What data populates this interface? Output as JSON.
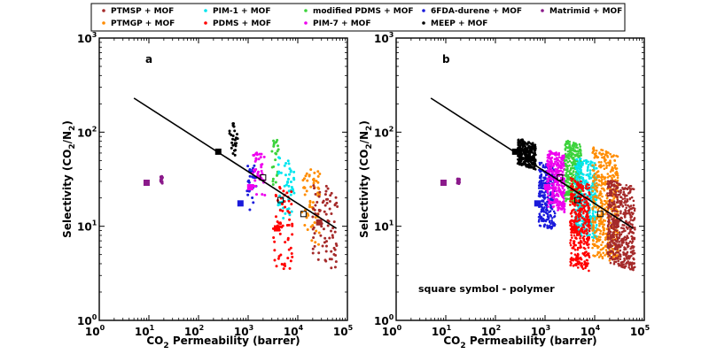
{
  "chart_data": {
    "type": "scatter",
    "scale": {
      "x": "log",
      "y": "log"
    },
    "xlim": [
      1,
      100000
    ],
    "ylim": [
      1,
      1000
    ],
    "x_ticks": [
      {
        "base": "10",
        "exp": "0"
      },
      {
        "base": "10",
        "exp": "1"
      },
      {
        "base": "10",
        "exp": "2"
      },
      {
        "base": "10",
        "exp": "3"
      },
      {
        "base": "10",
        "exp": "4"
      },
      {
        "base": "10",
        "exp": "5"
      }
    ],
    "y_ticks": [
      {
        "base": "10",
        "exp": "0"
      },
      {
        "base": "10",
        "exp": "1"
      },
      {
        "base": "10",
        "exp": "2"
      },
      {
        "base": "10",
        "exp": "3"
      }
    ],
    "xlabel": {
      "prefix": "CO",
      "sub": "2",
      "suffix": "  Permeability (barrer)"
    },
    "ylabel": {
      "prefix": "Selectivity (CO",
      "sub1": "2",
      "mid": "/N",
      "sub2": "2",
      "suffix": ")"
    },
    "legend": [
      {
        "label": "PTMSP + MOF",
        "color": "#a52a2a"
      },
      {
        "label": "PIM-1 + MOF",
        "color": "#00e5ee"
      },
      {
        "label": "modified PDMS + MOF",
        "color": "#3cd33c"
      },
      {
        "label": "6FDA-durene + MOF",
        "color": "#1a1adb"
      },
      {
        "label": "Matrimid + MOF",
        "color": "#8b1a8b"
      },
      {
        "label": "PTMGP + MOF",
        "color": "#ff8c00"
      },
      {
        "label": "PDMS + MOF",
        "color": "#ff0000"
      },
      {
        "label": "PIM-7 + MOF",
        "color": "#ee00ee"
      },
      {
        "label": "MEEP + MOF",
        "color": "#000000"
      }
    ],
    "legend_position": "top",
    "upper_bound_line": {
      "x": [
        5,
        60000
      ],
      "y": [
        230,
        9.5
      ]
    },
    "panels": [
      {
        "label": "a",
        "annotation": "",
        "polymers": [
          {
            "name": "Matrimid",
            "x": 9,
            "y": 29
          },
          {
            "name": "MEEP",
            "x": 250,
            "y": 62
          },
          {
            "name": "6FDA-durene",
            "x": 700,
            "y": 17.5
          },
          {
            "name": "PIM-7",
            "x": 1100,
            "y": 26
          },
          {
            "name": "modified PDMS",
            "x": 2000,
            "y": 33
          },
          {
            "name": "PDMS",
            "x": 3800,
            "y": 9.5
          },
          {
            "name": "PIM-1",
            "x": 4500,
            "y": 19
          },
          {
            "name": "PTMGP",
            "x": 13000,
            "y": 13.5
          },
          {
            "name": "PTMSP",
            "x": 27000,
            "y": 11
          }
        ],
        "clusters": [
          {
            "series": "Matrimid + MOF",
            "x": [
              17,
              19
            ],
            "y": [
              27,
              35
            ]
          },
          {
            "series": "MEEP + MOF",
            "x": [
              420,
              620
            ],
            "y": [
              55,
              140
            ]
          },
          {
            "series": "6FDA-durene + MOF",
            "x": [
              950,
              1450
            ],
            "y": [
              14,
              50
            ]
          },
          {
            "series": "PIM-7 + MOF",
            "x": [
              1200,
              2200
            ],
            "y": [
              20,
              70
            ]
          },
          {
            "series": "modified PDMS + MOF",
            "x": [
              3000,
              4200
            ],
            "y": [
              24,
              95
            ]
          },
          {
            "series": "PIM-1 + MOF",
            "x": [
              4000,
              8500
            ],
            "y": [
              11,
              62
            ]
          },
          {
            "series": "PDMS + MOF",
            "x": [
              3200,
              8000
            ],
            "y": [
              3.2,
              33
            ]
          },
          {
            "series": "PTMGP + MOF",
            "x": [
              12000,
              28000
            ],
            "y": [
              6,
              50
            ]
          },
          {
            "series": "PTMSP + MOF",
            "x": [
              20000,
              65000
            ],
            "y": [
              3.4,
              38
            ]
          }
        ]
      },
      {
        "label": "b",
        "annotation": "square symbol - polymer",
        "polymers": [
          {
            "name": "Matrimid",
            "x": 9,
            "y": 29
          },
          {
            "name": "MEEP",
            "x": 250,
            "y": 62
          },
          {
            "name": "6FDA-durene",
            "x": 700,
            "y": 17.5
          },
          {
            "name": "PIM-7",
            "x": 1100,
            "y": 26
          },
          {
            "name": "modified PDMS",
            "x": 2000,
            "y": 33
          },
          {
            "name": "PDMS",
            "x": 3800,
            "y": 9.5
          },
          {
            "name": "PIM-1",
            "x": 4500,
            "y": 19
          },
          {
            "name": "PTMGP",
            "x": 13000,
            "y": 13.5
          },
          {
            "name": "PTMSP",
            "x": 27000,
            "y": 11
          }
        ],
        "clusters": [
          {
            "series": "Matrimid + MOF",
            "x": [
              17,
              19
            ],
            "y": [
              28,
              32
            ]
          },
          {
            "series": "MEEP + MOF",
            "x": [
              280,
              650
            ],
            "y": [
              40,
              100
            ]
          },
          {
            "series": "6FDA-durene + MOF",
            "x": [
              750,
              1600
            ],
            "y": [
              9,
              55
            ]
          },
          {
            "series": "PIM-7 + MOF",
            "x": [
              1100,
              2500
            ],
            "y": [
              14,
              75
            ]
          },
          {
            "series": "modified PDMS + MOF",
            "x": [
              2500,
              5500
            ],
            "y": [
              16,
              95
            ]
          },
          {
            "series": "PIM-1 + MOF",
            "x": [
              4000,
              11000
            ],
            "y": [
              7,
              65
            ]
          },
          {
            "series": "PDMS + MOF",
            "x": [
              3200,
              8000
            ],
            "y": [
              3.3,
              38
            ]
          },
          {
            "series": "PTMGP + MOF",
            "x": [
              9000,
              30000
            ],
            "y": [
              4,
              85
            ]
          },
          {
            "series": "PTMSP + MOF",
            "x": [
              18000,
              65000
            ],
            "y": [
              3.3,
              40
            ]
          }
        ]
      }
    ]
  }
}
